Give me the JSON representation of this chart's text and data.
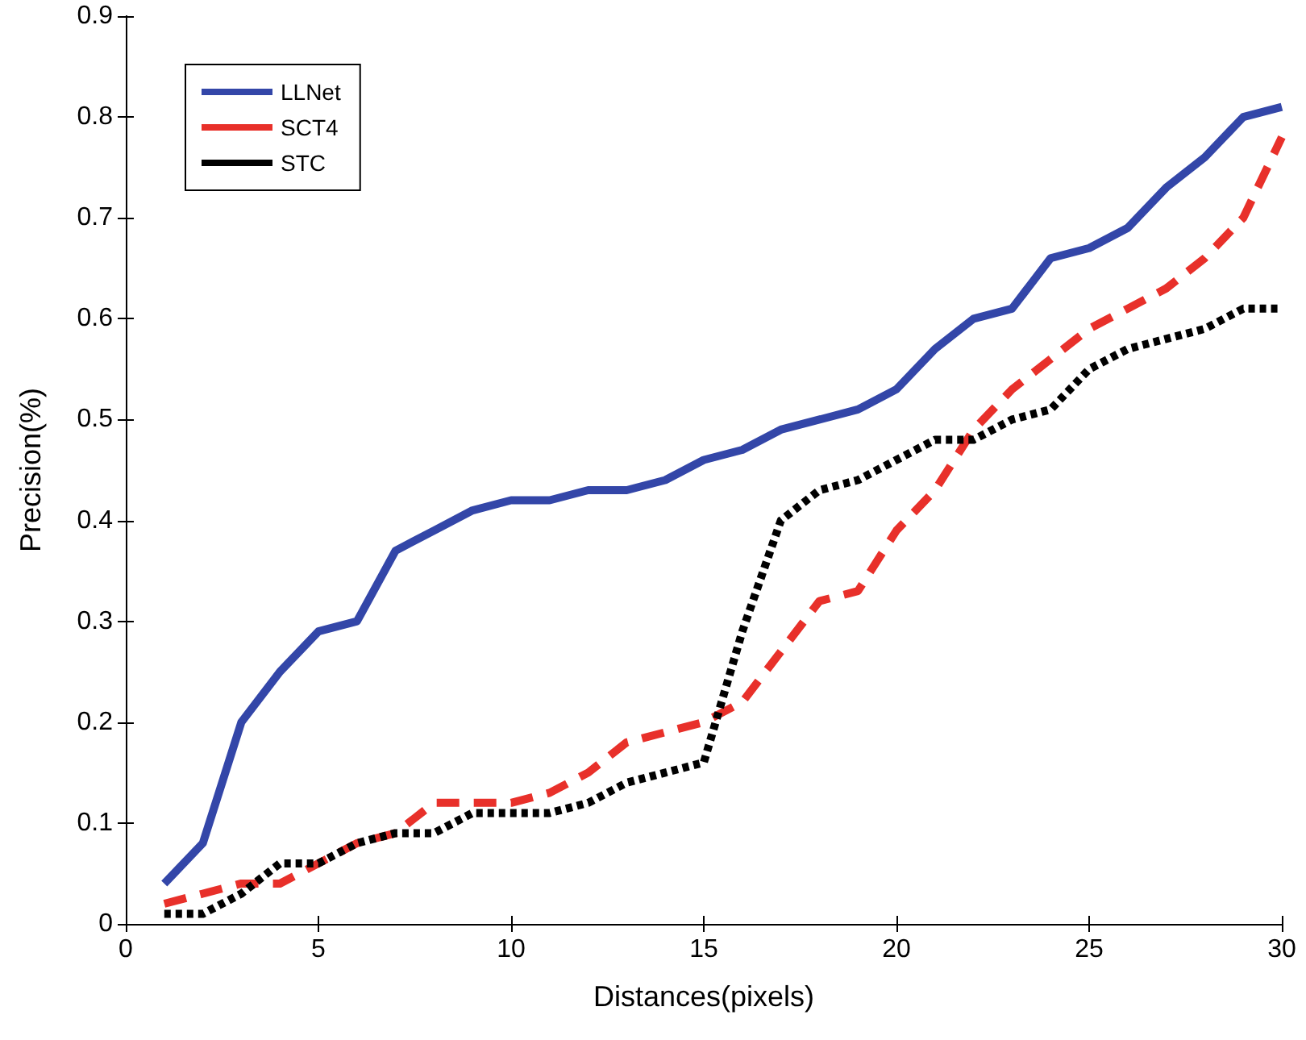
{
  "chart_data": {
    "type": "line",
    "xlabel": "Distances(pixels)",
    "ylabel": "Precision(%)",
    "x": [
      1,
      2,
      3,
      4,
      5,
      6,
      7,
      8,
      9,
      10,
      11,
      12,
      13,
      14,
      15,
      16,
      17,
      18,
      19,
      20,
      21,
      22,
      23,
      24,
      25,
      26,
      27,
      28,
      29,
      30
    ],
    "series": [
      {
        "name": "LLNet",
        "color": "#3346a8",
        "line_style": "solid",
        "values": [
          0.04,
          0.08,
          0.2,
          0.25,
          0.29,
          0.3,
          0.37,
          0.39,
          0.41,
          0.42,
          0.42,
          0.43,
          0.43,
          0.44,
          0.46,
          0.47,
          0.49,
          0.5,
          0.51,
          0.53,
          0.57,
          0.6,
          0.61,
          0.66,
          0.67,
          0.69,
          0.73,
          0.76,
          0.8,
          0.81
        ]
      },
      {
        "name": "SCT4",
        "color": "#e8302a",
        "line_style": "dashed",
        "values": [
          0.02,
          0.03,
          0.04,
          0.04,
          0.06,
          0.08,
          0.09,
          0.12,
          0.12,
          0.12,
          0.13,
          0.15,
          0.18,
          0.19,
          0.2,
          0.22,
          0.27,
          0.32,
          0.33,
          0.39,
          0.43,
          0.49,
          0.53,
          0.56,
          0.59,
          0.61,
          0.63,
          0.66,
          0.7,
          0.78
        ]
      },
      {
        "name": "STC",
        "color": "#000000",
        "line_style": "dotted",
        "values": [
          0.01,
          0.01,
          0.03,
          0.06,
          0.06,
          0.08,
          0.09,
          0.09,
          0.11,
          0.11,
          0.11,
          0.12,
          0.14,
          0.15,
          0.16,
          0.29,
          0.4,
          0.43,
          0.44,
          0.46,
          0.48,
          0.48,
          0.5,
          0.51,
          0.55,
          0.57,
          0.58,
          0.59,
          0.61,
          0.61
        ]
      }
    ],
    "xlim": [
      0,
      30
    ],
    "xticks": [
      0,
      5,
      10,
      15,
      20,
      25,
      30
    ],
    "ylim": [
      0,
      0.9
    ],
    "yticks": [
      0,
      0.1,
      0.2,
      0.3,
      0.4,
      0.5,
      0.6,
      0.7,
      0.8,
      0.9
    ],
    "grid": false,
    "legend": "top left",
    "marker": "none"
  }
}
